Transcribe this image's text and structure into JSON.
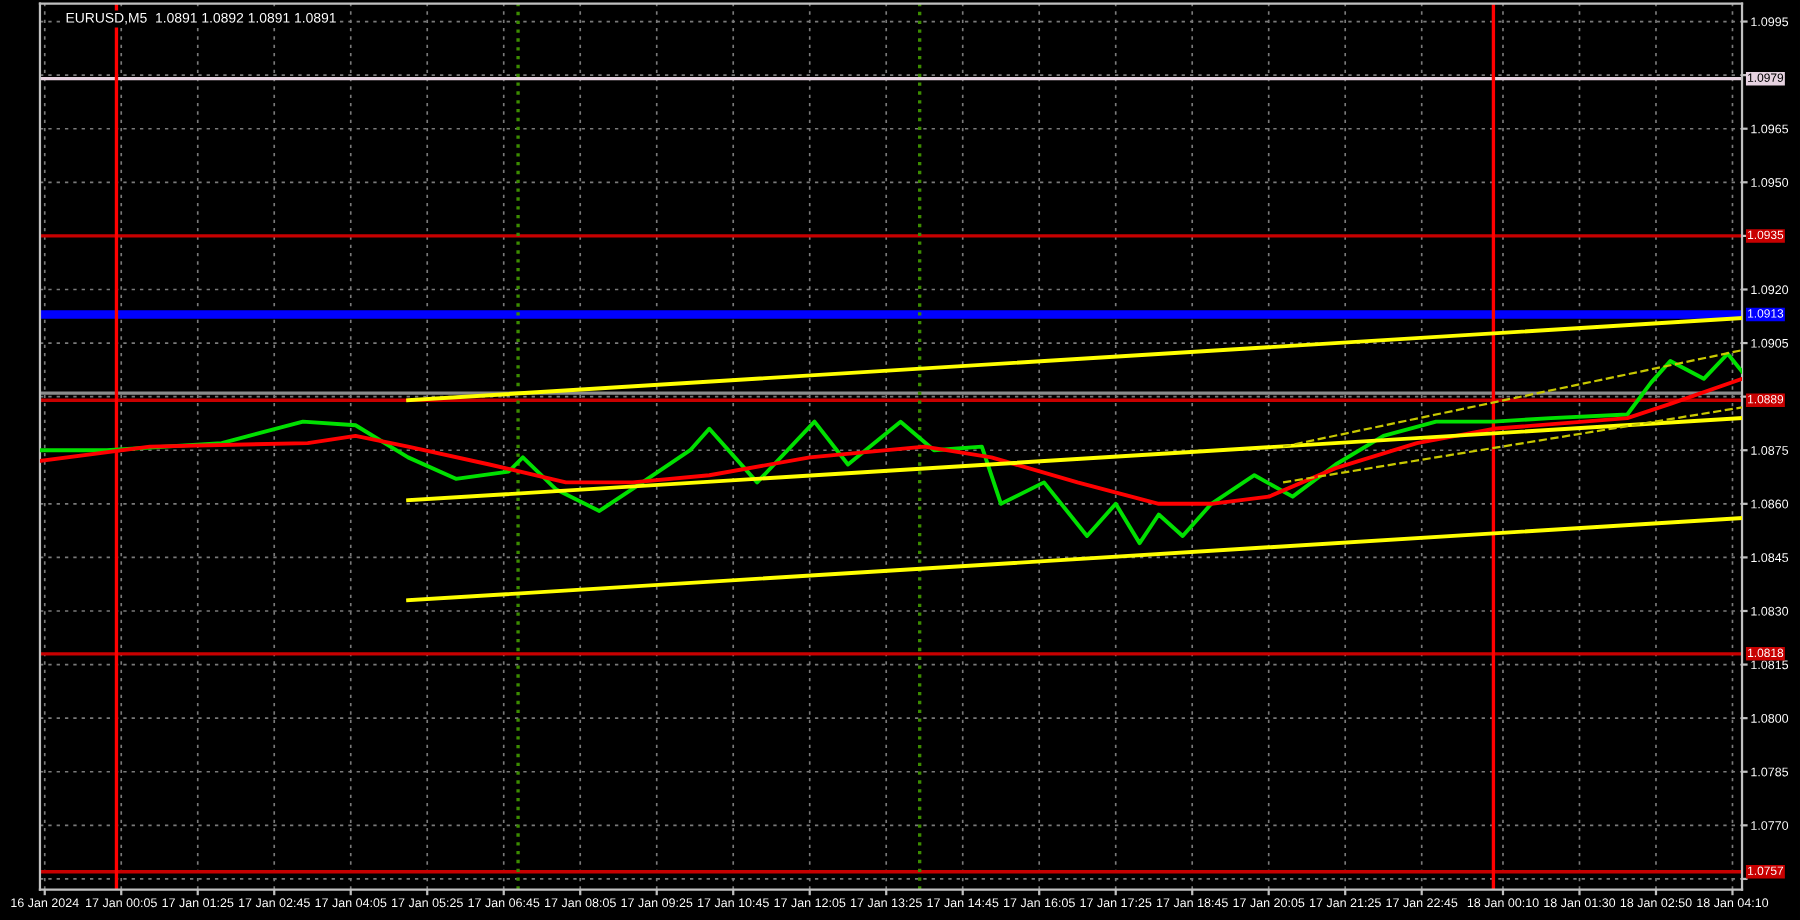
{
  "chart_data": {
    "type": "line",
    "title": "EURUSD,M5  1.0891 1.0892 1.0891 1.0891",
    "xlim": [
      "2024-01-16T22:40",
      "2024-01-18T04:20"
    ],
    "xticks": [
      {
        "value": "2024-01-16T22:45",
        "label": "16 Jan 2024"
      },
      {
        "value": "2024-01-17T00:05",
        "label": "17 Jan 00:05"
      },
      {
        "value": "2024-01-17T01:25",
        "label": "17 Jan 01:25"
      },
      {
        "value": "2024-01-17T02:45",
        "label": "17 Jan 02:45"
      },
      {
        "value": "2024-01-17T04:05",
        "label": "17 Jan 04:05"
      },
      {
        "value": "2024-01-17T05:25",
        "label": "17 Jan 05:25"
      },
      {
        "value": "2024-01-17T06:45",
        "label": "17 Jan 06:45"
      },
      {
        "value": "2024-01-17T08:05",
        "label": "17 Jan 08:05"
      },
      {
        "value": "2024-01-17T09:25",
        "label": "17 Jan 09:25"
      },
      {
        "value": "2024-01-17T10:45",
        "label": "17 Jan 10:45"
      },
      {
        "value": "2024-01-17T12:05",
        "label": "17 Jan 12:05"
      },
      {
        "value": "2024-01-17T13:25",
        "label": "17 Jan 13:25"
      },
      {
        "value": "2024-01-17T14:45",
        "label": "17 Jan 14:45"
      },
      {
        "value": "2024-01-17T16:05",
        "label": "17 Jan 16:05"
      },
      {
        "value": "2024-01-17T17:25",
        "label": "17 Jan 17:25"
      },
      {
        "value": "2024-01-17T18:45",
        "label": "17 Jan 18:45"
      },
      {
        "value": "2024-01-17T20:05",
        "label": "17 Jan 20:05"
      },
      {
        "value": "2024-01-17T21:25",
        "label": "17 Jan 21:25"
      },
      {
        "value": "2024-01-17T22:45",
        "label": "17 Jan 22:45"
      },
      {
        "value": "2024-01-18T00:10",
        "label": "18 Jan 00:10"
      },
      {
        "value": "2024-01-18T01:30",
        "label": "18 Jan 01:30"
      },
      {
        "value": "2024-01-18T02:50",
        "label": "18 Jan 02:50"
      },
      {
        "value": "2024-01-18T04:10",
        "label": "18 Jan 04:10"
      }
    ],
    "ylim": [
      1.0752,
      1.1
    ],
    "yticks": [
      {
        "value": 1.0995,
        "label": "1.0995"
      },
      {
        "value": 1.098,
        "label": null
      },
      {
        "value": 1.0965,
        "label": "1.0965"
      },
      {
        "value": 1.095,
        "label": "1.0950"
      },
      {
        "value": 1.0935,
        "label": null
      },
      {
        "value": 1.092,
        "label": "1.0920"
      },
      {
        "value": 1.0905,
        "label": "1.0905"
      },
      {
        "value": 1.089,
        "label": null
      },
      {
        "value": 1.0875,
        "label": "1.0875"
      },
      {
        "value": 1.086,
        "label": "1.0860"
      },
      {
        "value": 1.0845,
        "label": "1.0845"
      },
      {
        "value": 1.083,
        "label": "1.0830"
      },
      {
        "value": 1.0815,
        "label": "1.0815"
      },
      {
        "value": 1.08,
        "label": "1.0800"
      },
      {
        "value": 1.0785,
        "label": "1.0785"
      },
      {
        "value": 1.077,
        "label": "1.0770"
      },
      {
        "value": 1.0755,
        "label": null
      }
    ],
    "grid": true,
    "series": [
      {
        "color": "#00e000",
        "x": [
          "2024-01-16T22:40",
          "2024-01-16T23:50",
          "2024-01-17T01:50",
          "2024-01-17T03:15",
          "2024-01-17T04:10",
          "2024-01-17T05:05",
          "2024-01-17T05:55",
          "2024-01-17T06:50",
          "2024-01-17T07:05",
          "2024-01-17T07:40",
          "2024-01-17T08:25",
          "2024-01-17T09:10",
          "2024-01-17T10:00",
          "2024-01-17T10:20",
          "2024-01-17T11:10",
          "2024-01-17T12:10",
          "2024-01-17T12:45",
          "2024-01-17T13:40",
          "2024-01-17T14:15",
          "2024-01-17T15:05",
          "2024-01-17T15:25",
          "2024-01-17T16:10",
          "2024-01-17T16:55",
          "2024-01-17T17:25",
          "2024-01-17T17:50",
          "2024-01-17T18:10",
          "2024-01-17T18:35",
          "2024-01-17T19:05",
          "2024-01-17T19:50",
          "2024-01-17T20:30",
          "2024-01-17T21:15",
          "2024-01-17T22:05",
          "2024-01-17T23:00",
          "2024-01-18T00:00",
          "2024-01-18T01:00",
          "2024-01-18T02:20",
          "2024-01-18T02:45",
          "2024-01-18T03:05",
          "2024-01-18T03:40",
          "2024-01-18T04:05",
          "2024-01-18T04:20"
        ],
        "values": [
          1.0875,
          1.0875,
          1.0877,
          1.0883,
          1.0882,
          1.0873,
          1.0867,
          1.0869,
          1.0873,
          1.0864,
          1.0858,
          1.0866,
          1.0875,
          1.0881,
          1.0866,
          1.0883,
          1.0871,
          1.0883,
          1.0875,
          1.0876,
          1.086,
          1.0866,
          1.0851,
          1.086,
          1.0849,
          1.0857,
          1.0851,
          1.086,
          1.0868,
          1.0862,
          1.0871,
          1.0879,
          1.0883,
          1.0883,
          1.0884,
          1.0885,
          1.0894,
          1.09,
          1.0895,
          1.0902,
          1.0897
        ]
      },
      {
        "color": "#ff0000",
        "x": [
          "2024-01-16T22:40",
          "2024-01-17T00:35",
          "2024-01-17T03:20",
          "2024-01-17T04:10",
          "2024-01-17T05:05",
          "2024-01-17T06:30",
          "2024-01-17T07:50",
          "2024-01-17T09:00",
          "2024-01-17T10:20",
          "2024-01-17T12:05",
          "2024-01-17T14:05",
          "2024-01-17T15:15",
          "2024-01-17T16:45",
          "2024-01-17T18:10",
          "2024-01-17T19:05",
          "2024-01-17T20:05",
          "2024-01-17T21:15",
          "2024-01-17T22:40",
          "2024-01-18T00:00",
          "2024-01-18T02:20",
          "2024-01-18T03:05",
          "2024-01-18T04:20"
        ],
        "values": [
          1.0872,
          1.0876,
          1.0877,
          1.0879,
          1.0876,
          1.0871,
          1.0866,
          1.0866,
          1.0868,
          1.0873,
          1.0876,
          1.0873,
          1.0866,
          1.086,
          1.086,
          1.0862,
          1.087,
          1.0877,
          1.0881,
          1.0884,
          1.0888,
          1.0895
        ]
      },
      {
        "color": "#ffff00",
        "x": [
          "2024-01-17T05:05",
          "2024-01-18T04:20"
        ],
        "values": [
          1.0889,
          1.0912
        ]
      },
      {
        "color": "#ffff00",
        "x": [
          "2024-01-17T05:05",
          "2024-01-18T04:20"
        ],
        "values": [
          1.0861,
          1.0884
        ]
      },
      {
        "color": "#ffff00",
        "x": [
          "2024-01-17T05:05",
          "2024-01-18T04:20"
        ],
        "values": [
          1.0833,
          1.0856
        ]
      },
      {
        "color": "#c8c800",
        "line_style": "dashed",
        "x": [
          "2024-01-17T20:20",
          "2024-01-18T04:20"
        ],
        "values": [
          1.0876,
          1.0903
        ]
      },
      {
        "color": "#c8c800",
        "line_style": "dashed",
        "x": [
          "2024-01-17T20:20",
          "2024-01-18T04:20"
        ],
        "values": [
          1.0866,
          1.0887
        ]
      }
    ],
    "ref_lines": [
      {
        "axis": "y",
        "value": 1.0979,
        "label": "1.0979",
        "color": "#e6d2e0"
      },
      {
        "axis": "y",
        "value": 1.0935,
        "label": "1.0935",
        "color": "#c80000"
      },
      {
        "axis": "y",
        "value": 1.0913,
        "label": "1.0913",
        "color": "#0000ff"
      },
      {
        "axis": "y",
        "value": 1.0891,
        "label": null,
        "color": "#8c8c8c"
      },
      {
        "axis": "y",
        "value": 1.0889,
        "label": "1.0889",
        "color": "#c80000"
      },
      {
        "axis": "y",
        "value": 1.0818,
        "label": "1.0818",
        "color": "#c80000"
      },
      {
        "axis": "y",
        "value": 1.0757,
        "label": "1.0757",
        "color": "#c80000"
      },
      {
        "axis": "x",
        "value": "2024-01-17T00:00",
        "label": null,
        "color": "#ff0000"
      },
      {
        "axis": "x",
        "value": "2024-01-18T00:00",
        "label": null,
        "color": "#ff0000"
      },
      {
        "axis": "x",
        "value": "2024-01-17T07:00",
        "label": null,
        "color": "#3c8c00",
        "line_style": "dotted"
      },
      {
        "axis": "x",
        "value": "2024-01-17T14:00",
        "label": null,
        "color": "#3c8c00",
        "line_style": "dotted"
      }
    ]
  }
}
